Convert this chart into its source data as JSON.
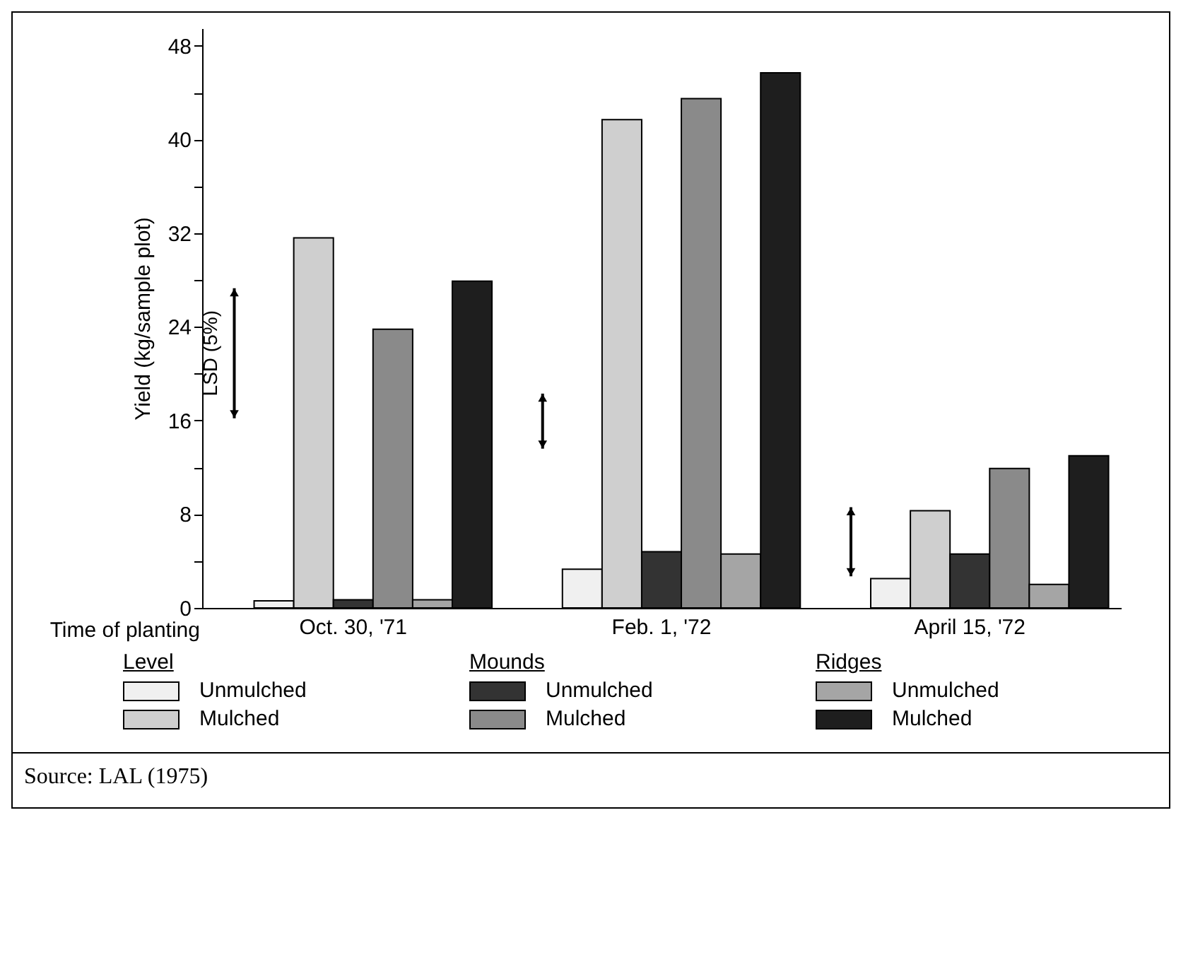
{
  "chart_data": {
    "type": "bar",
    "xlabel": "Time of planting",
    "ylabel": "Yield (kg/sample plot)",
    "categories": [
      "Oct. 30, '71",
      "Feb. 1, '72",
      "April 15, '72"
    ],
    "series": [
      {
        "type": "bar",
        "color": "#000000",
        "base": [
          16.2,
          13.6,
          2.7
        ],
        "values": [
          11.1,
          4.7,
          5.9
        ]
      },
      {
        "name": "Unmulched",
        "color": "#f0f0f0",
        "values": [
          0.6,
          3.3,
          2.5
        ]
      },
      {
        "name": "Mulched",
        "color": "#cfcfcf",
        "values": [
          31.6,
          41.7,
          8.3
        ]
      },
      {
        "name": "Unmulched",
        "color": "#333333",
        "values": [
          0.7,
          4.8,
          4.6
        ]
      },
      {
        "name": "Mulched",
        "color": "#8a8a8a",
        "values": [
          23.8,
          43.5,
          11.9
        ]
      },
      {
        "name": "Unmulched",
        "color": "#a5a5a5",
        "values": [
          0.7,
          4.6,
          2.0
        ]
      },
      {
        "name": "Mulched",
        "color": "#1e1e1e",
        "values": [
          27.9,
          45.7,
          13.0
        ]
      }
    ],
    "ylim": [
      0,
      49.5
    ],
    "yticks": [
      0,
      {
        "value": 4,
        "label": null
      },
      8,
      {
        "value": 12,
        "label": null
      },
      16,
      {
        "value": 20,
        "label": null
      },
      24,
      {
        "value": 28,
        "label": null
      },
      32,
      {
        "value": 36,
        "label": null
      },
      40,
      {
        "value": 44,
        "label": null
      },
      48
    ],
    "legend": "bottom",
    "annotations": [
      "LSD (5%)",
      "Level",
      "Mounds",
      "Ridges",
      "Source: LAL (1975)"
    ]
  }
}
